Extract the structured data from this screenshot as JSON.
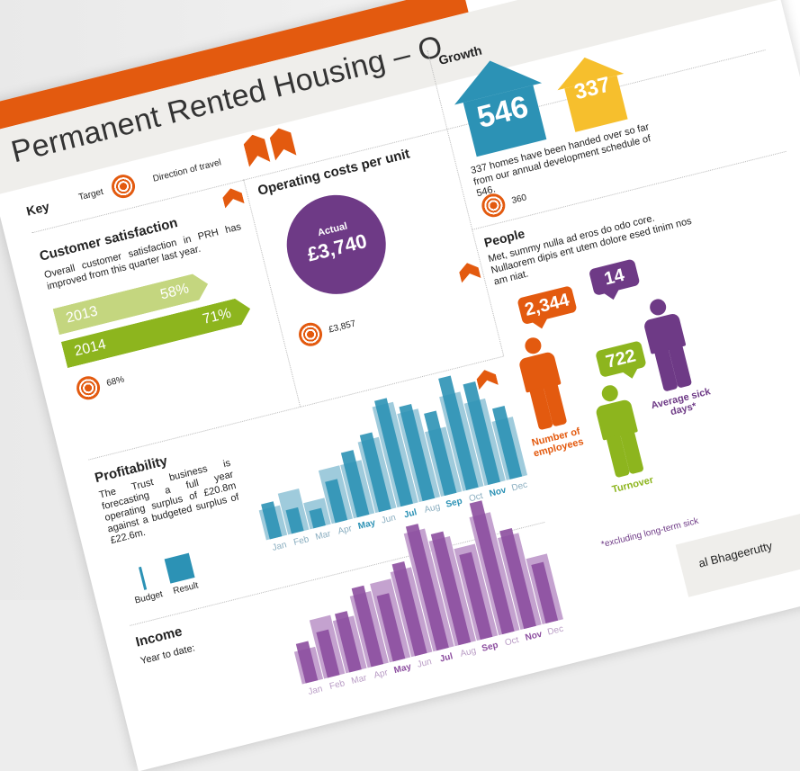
{
  "title": "Permanent Rented Housing – O",
  "key": {
    "heading": "Key",
    "target_label": "Target",
    "direction_label": "Direction of travel"
  },
  "customer_satisfaction": {
    "heading": "Customer satisfaction",
    "text": "Overall customer satisfaction in PRH has improved from this quarter last year.",
    "rows": [
      {
        "year": "2013",
        "value": "58%",
        "color": "#c4d67f"
      },
      {
        "year": "2014",
        "value": "71%",
        "color": "#8db51e"
      }
    ],
    "target_value": "68%"
  },
  "operating_costs": {
    "heading": "Operating costs per unit",
    "actual_label": "Actual",
    "actual_value": "£3,740",
    "target_value": "£3,857",
    "color": "#6e3a86"
  },
  "growth": {
    "heading": "Growth",
    "houses": [
      {
        "value": "546",
        "color": "#2c92b5"
      },
      {
        "value": "337",
        "color": "#f6bf2d"
      }
    ],
    "text": "337 homes have been handed over so far from our annual development schedule of 546.",
    "target_value": "360"
  },
  "people": {
    "heading": "People",
    "text": "Met, summy nulla ad eros do odo core. Nullaorem dipis ent utem dolore esed tinim nos am niat.",
    "figures": [
      {
        "value": "2,344",
        "label": "Number of employees",
        "color": "#e35a0f"
      },
      {
        "value": "722",
        "label": "Turnover",
        "color": "#8db51e"
      },
      {
        "value": "14",
        "label": "Average sick days*",
        "color": "#6e3a86"
      }
    ],
    "footnote": "*excluding long-term sick"
  },
  "profitability": {
    "heading": "Profitability",
    "text": "The Trust business is forecasting a full year operating surplus of £20.8m against a budgeted surplus of £22.6m.",
    "legend_budget": "Budget",
    "legend_result": "Result"
  },
  "income": {
    "heading": "Income",
    "text": "Year to date:"
  },
  "signoff": {
    "text": "al Bhageerutty"
  },
  "chart_data": [
    {
      "type": "bar",
      "title": "Profitability",
      "categories": [
        "Jan",
        "Feb",
        "Mar",
        "Apr",
        "May",
        "Jun",
        "Jul",
        "Aug",
        "Sep",
        "Oct",
        "Nov",
        "Dec"
      ],
      "series": [
        {
          "name": "Result",
          "values": [
            30,
            20,
            15,
            35,
            55,
            65,
            90,
            80,
            70,
            95,
            85,
            60
          ],
          "color": "#2c92b5"
        },
        {
          "name": "Budget",
          "values": [
            25,
            35,
            22,
            45,
            45,
            60,
            85,
            75,
            55,
            80,
            70,
            50
          ],
          "color": "#9fcbdc"
        }
      ],
      "highlight": [
        "May",
        "Jul",
        "Sep",
        "Nov"
      ],
      "ylim": [
        0,
        100
      ]
    },
    {
      "type": "bar",
      "title": "Income",
      "categories": [
        "Jan",
        "Feb",
        "Mar",
        "Apr",
        "May",
        "Jun",
        "Jul",
        "Aug",
        "Sep",
        "Oct",
        "Nov",
        "Dec"
      ],
      "series": [
        {
          "name": "Result",
          "values": [
            30,
            35,
            45,
            60,
            50,
            70,
            95,
            85,
            65,
            100,
            75,
            45
          ],
          "color": "#8c4e9f"
        },
        {
          "name": "Budget",
          "values": [
            25,
            45,
            40,
            55,
            60,
            65,
            90,
            80,
            70,
            90,
            70,
            50
          ],
          "color": "#c4a2cf"
        }
      ],
      "highlight": [
        "May",
        "Jul",
        "Sep",
        "Nov"
      ],
      "ylim": [
        0,
        100
      ]
    }
  ]
}
